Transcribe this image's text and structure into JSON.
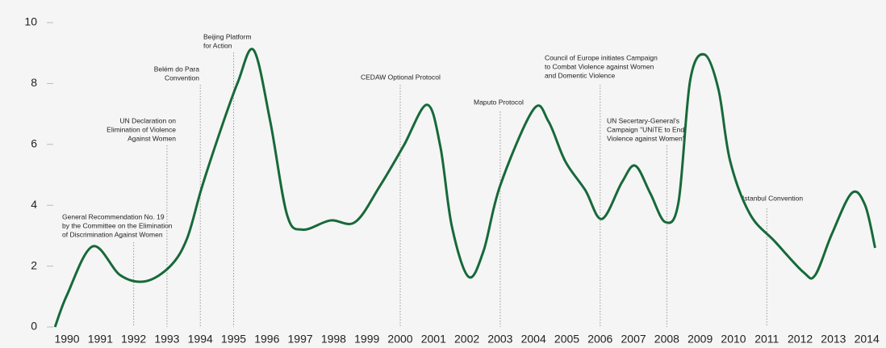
{
  "chart_data": {
    "type": "line",
    "x": [
      1989.64,
      1990.0,
      1990.77,
      1991.6,
      1992.35,
      1993.1,
      1993.6,
      1994.05,
      1994.65,
      1995.13,
      1995.6,
      1996.1,
      1996.6,
      1997.07,
      1997.9,
      1998.65,
      1999.4,
      2000.1,
      2000.8,
      2001.2,
      2001.55,
      2002.05,
      2002.5,
      2003.0,
      2004.0,
      2004.45,
      2004.95,
      2005.55,
      2006.05,
      2006.65,
      2007.05,
      2007.5,
      2007.95,
      2008.35,
      2008.7,
      2009.13,
      2009.55,
      2009.9,
      2010.5,
      2011.25,
      2012.1,
      2012.45,
      2012.95,
      2013.55,
      2013.95,
      2014.25
    ],
    "series": [
      {
        "color": "#17693a",
        "values": [
          0,
          1.05,
          2.65,
          1.7,
          1.5,
          2.0,
          2.9,
          4.6,
          6.6,
          8.05,
          9.1,
          6.75,
          3.7,
          3.2,
          3.5,
          3.45,
          4.65,
          5.95,
          7.3,
          5.95,
          3.3,
          1.65,
          2.5,
          4.65,
          7.15,
          6.75,
          5.45,
          4.5,
          3.55,
          4.75,
          5.3,
          4.4,
          3.45,
          4.1,
          8.1,
          8.95,
          7.8,
          5.45,
          3.7,
          2.8,
          1.8,
          1.7,
          3.05,
          4.4,
          4.0,
          2.6
        ]
      }
    ],
    "xlim": [
      1989.6,
      2014.4
    ],
    "xticks": [
      1990,
      1991,
      1992,
      1993,
      1994,
      1995,
      1996,
      1997,
      1998,
      1999,
      2000,
      2001,
      2002,
      2003,
      2004,
      2005,
      2006,
      2007,
      2008,
      2009,
      2010,
      2011,
      2012,
      2013,
      2014
    ],
    "ylim": [
      0,
      10
    ],
    "yticks": [
      0,
      2,
      4,
      6,
      8,
      10
    ],
    "annotations": [
      {
        "x": 1992,
        "text": [
          "General Recommendation No. 19",
          "by the Committee on the Elimination",
          "of Discrimination Against Women"
        ]
      },
      {
        "x": 1993,
        "text": [
          "UN Declaration on",
          "Elimination of Violence",
          "Against Women"
        ]
      },
      {
        "x": 1994,
        "text": [
          "Belém do Para",
          "Convention"
        ]
      },
      {
        "x": 1995,
        "text": [
          "Beijing Platform",
          "for Action"
        ]
      },
      {
        "x": 2000,
        "text": [
          "CEDAW Optional Protocol"
        ]
      },
      {
        "x": 2003,
        "text": [
          "Maputo Protocol"
        ]
      },
      {
        "x": 2006,
        "text": [
          "Council of Europe initiates Campaign",
          "to Combat Violence against Women",
          "and Domentic Violence"
        ]
      },
      {
        "x": 2008,
        "text": [
          "UN Secertary-General's",
          "Campaign \"UNiTE to End",
          "Violence against Women\""
        ]
      },
      {
        "x": 2011,
        "text": [
          "Istanbul Convention"
        ]
      }
    ]
  }
}
